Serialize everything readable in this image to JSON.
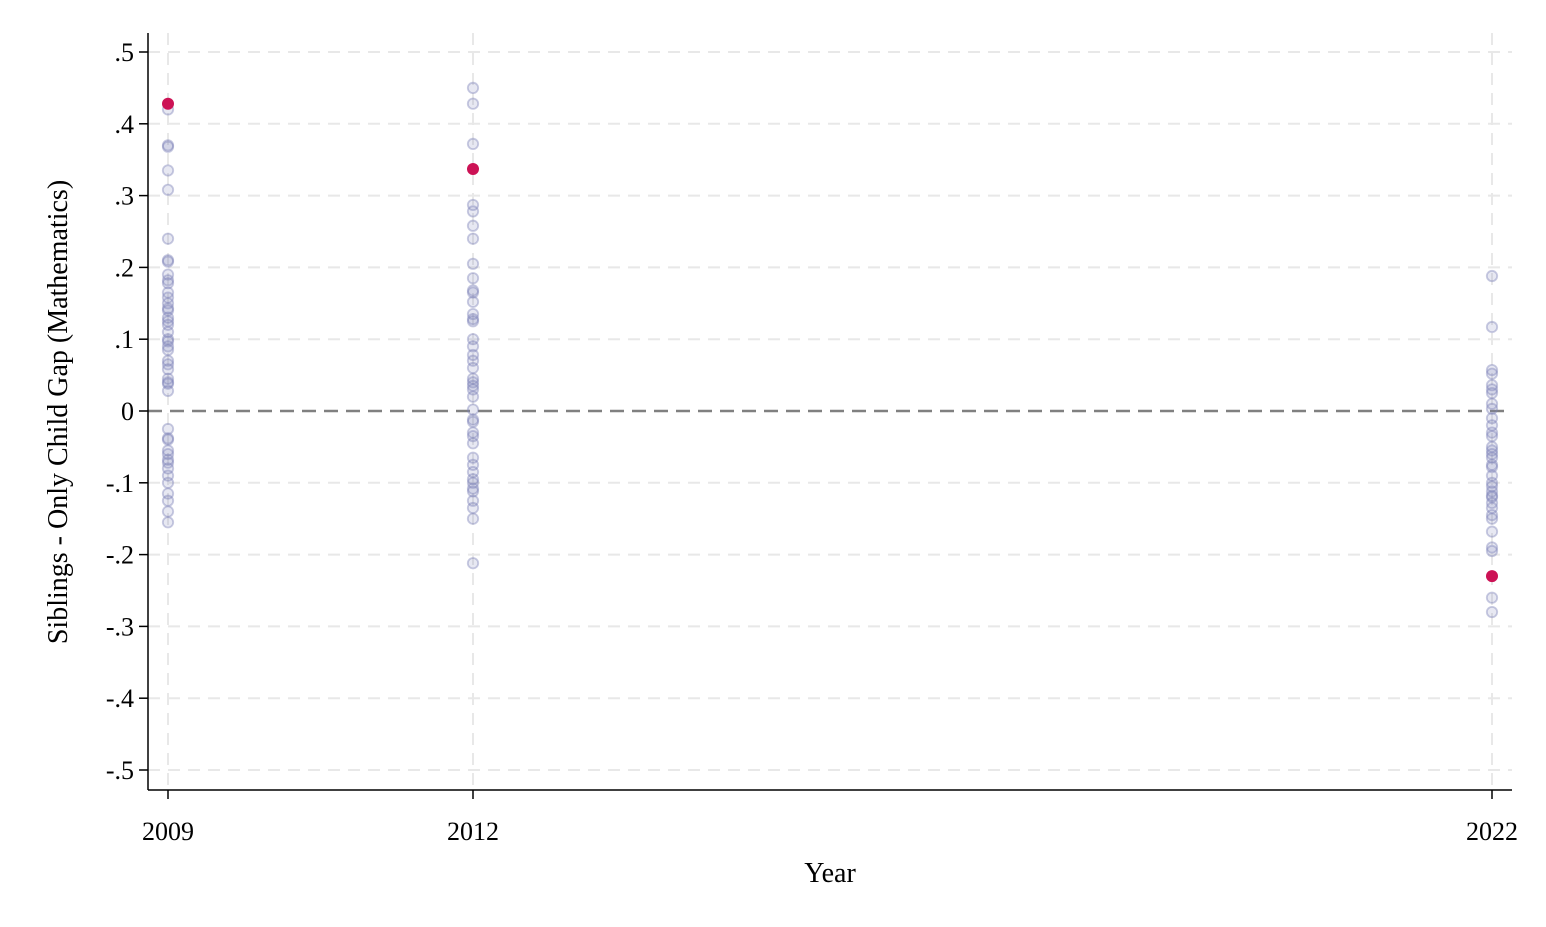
{
  "chart_data": {
    "type": "scatter",
    "xlabel": "Year",
    "ylabel": "Siblings - Only Child Gap (Mathematics)",
    "x_ticks": [
      2009,
      2012,
      2022
    ],
    "y_ticks": [
      0.5,
      0.4,
      0.3,
      0.2,
      0.1,
      0,
      -0.1,
      -0.2,
      -0.3,
      -0.4,
      -0.5
    ],
    "y_tick_labels": [
      ".5",
      ".4",
      ".3",
      ".2",
      ".1",
      "0",
      "-.1",
      "-.2",
      "-.3",
      "-.4",
      "-.5"
    ],
    "ylim": [
      -0.53,
      0.53
    ],
    "reference_line_y": 0,
    "grid": true,
    "colors": {
      "background_points": "#7b80b8",
      "highlight_points": "#cc1255",
      "grid": "#e8e8e8",
      "reference_line": "#808080"
    },
    "series": [
      {
        "style": "background",
        "points": [
          [
            2009,
            0.42
          ],
          [
            2009,
            0.37
          ],
          [
            2009,
            0.368
          ],
          [
            2009,
            0.335
          ],
          [
            2009,
            0.308
          ],
          [
            2009,
            0.24
          ],
          [
            2009,
            0.21
          ],
          [
            2009,
            0.208
          ],
          [
            2009,
            0.19
          ],
          [
            2009,
            0.182
          ],
          [
            2009,
            0.178
          ],
          [
            2009,
            0.165
          ],
          [
            2009,
            0.158
          ],
          [
            2009,
            0.15
          ],
          [
            2009,
            0.143
          ],
          [
            2009,
            0.14
          ],
          [
            2009,
            0.13
          ],
          [
            2009,
            0.125
          ],
          [
            2009,
            0.12
          ],
          [
            2009,
            0.11
          ],
          [
            2009,
            0.1
          ],
          [
            2009,
            0.097
          ],
          [
            2009,
            0.09
          ],
          [
            2009,
            0.085
          ],
          [
            2009,
            0.07
          ],
          [
            2009,
            0.065
          ],
          [
            2009,
            0.058
          ],
          [
            2009,
            0.045
          ],
          [
            2009,
            0.04
          ],
          [
            2009,
            0.038
          ],
          [
            2009,
            0.028
          ],
          [
            2009,
            -0.025
          ],
          [
            2009,
            -0.038
          ],
          [
            2009,
            -0.04
          ],
          [
            2009,
            -0.055
          ],
          [
            2009,
            -0.06
          ],
          [
            2009,
            -0.068
          ],
          [
            2009,
            -0.072
          ],
          [
            2009,
            -0.08
          ],
          [
            2009,
            -0.09
          ],
          [
            2009,
            -0.1
          ],
          [
            2009,
            -0.115
          ],
          [
            2009,
            -0.125
          ],
          [
            2009,
            -0.14
          ],
          [
            2009,
            -0.155
          ],
          [
            2012,
            0.45
          ],
          [
            2012,
            0.428
          ],
          [
            2012,
            0.372
          ],
          [
            2012,
            0.287
          ],
          [
            2012,
            0.278
          ],
          [
            2012,
            0.258
          ],
          [
            2012,
            0.24
          ],
          [
            2012,
            0.205
          ],
          [
            2012,
            0.185
          ],
          [
            2012,
            0.168
          ],
          [
            2012,
            0.165
          ],
          [
            2012,
            0.152
          ],
          [
            2012,
            0.135
          ],
          [
            2012,
            0.128
          ],
          [
            2012,
            0.125
          ],
          [
            2012,
            0.1
          ],
          [
            2012,
            0.09
          ],
          [
            2012,
            0.078
          ],
          [
            2012,
            0.07
          ],
          [
            2012,
            0.06
          ],
          [
            2012,
            0.045
          ],
          [
            2012,
            0.04
          ],
          [
            2012,
            0.035
          ],
          [
            2012,
            0.03
          ],
          [
            2012,
            0.02
          ],
          [
            2012,
            0.002
          ],
          [
            2012,
            -0.012
          ],
          [
            2012,
            -0.015
          ],
          [
            2012,
            -0.03
          ],
          [
            2012,
            -0.035
          ],
          [
            2012,
            -0.045
          ],
          [
            2012,
            -0.065
          ],
          [
            2012,
            -0.075
          ],
          [
            2012,
            -0.085
          ],
          [
            2012,
            -0.095
          ],
          [
            2012,
            -0.1
          ],
          [
            2012,
            -0.108
          ],
          [
            2012,
            -0.112
          ],
          [
            2012,
            -0.125
          ],
          [
            2012,
            -0.135
          ],
          [
            2012,
            -0.15
          ],
          [
            2012,
            -0.212
          ],
          [
            2022,
            0.188
          ],
          [
            2022,
            0.117
          ],
          [
            2022,
            0.057
          ],
          [
            2022,
            0.052
          ],
          [
            2022,
            0.036
          ],
          [
            2022,
            0.03
          ],
          [
            2022,
            0.025
          ],
          [
            2022,
            0.01
          ],
          [
            2022,
            0.003
          ],
          [
            2022,
            -0.01
          ],
          [
            2022,
            -0.02
          ],
          [
            2022,
            -0.03
          ],
          [
            2022,
            -0.035
          ],
          [
            2022,
            -0.05
          ],
          [
            2022,
            -0.055
          ],
          [
            2022,
            -0.06
          ],
          [
            2022,
            -0.065
          ],
          [
            2022,
            -0.075
          ],
          [
            2022,
            -0.078
          ],
          [
            2022,
            -0.09
          ],
          [
            2022,
            -0.1
          ],
          [
            2022,
            -0.105
          ],
          [
            2022,
            -0.112
          ],
          [
            2022,
            -0.118
          ],
          [
            2022,
            -0.12
          ],
          [
            2022,
            -0.128
          ],
          [
            2022,
            -0.135
          ],
          [
            2022,
            -0.145
          ],
          [
            2022,
            -0.15
          ],
          [
            2022,
            -0.168
          ],
          [
            2022,
            -0.19
          ],
          [
            2022,
            -0.195
          ],
          [
            2022,
            -0.26
          ],
          [
            2022,
            -0.28
          ]
        ]
      },
      {
        "style": "highlight",
        "points": [
          [
            2009,
            0.428
          ],
          [
            2012,
            0.337
          ],
          [
            2022,
            -0.23
          ]
        ]
      }
    ]
  }
}
